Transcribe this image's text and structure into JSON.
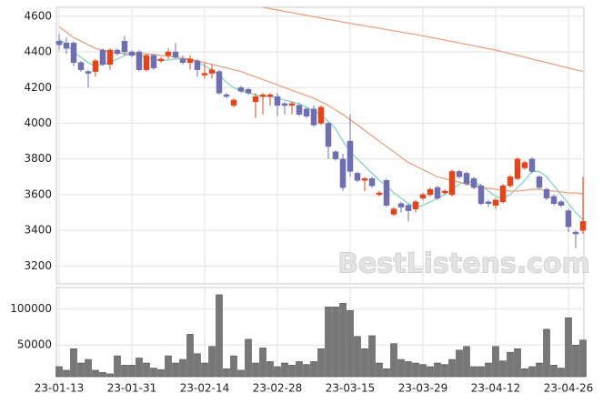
{
  "chart_data": {
    "type": "candlestick",
    "watermark": "BestListens.com",
    "categories": [
      "23-01-13",
      null,
      null,
      null,
      null,
      null,
      null,
      null,
      null,
      null,
      "23-01-31",
      null,
      null,
      null,
      null,
      null,
      null,
      null,
      null,
      null,
      "23-02-14",
      null,
      null,
      null,
      null,
      null,
      null,
      null,
      null,
      null,
      "23-02-28",
      null,
      null,
      null,
      null,
      null,
      null,
      null,
      null,
      null,
      "23-03-15",
      null,
      null,
      null,
      null,
      null,
      null,
      null,
      null,
      null,
      "23-03-29",
      null,
      null,
      null,
      null,
      null,
      null,
      null,
      null,
      null,
      "23-04-12",
      null,
      null,
      null,
      null,
      null,
      null,
      null,
      null,
      null,
      "23-04-26",
      null,
      null
    ],
    "up_color": "#e0461c",
    "down_color": "#6f6fb0",
    "open": [
      4460,
      4450,
      4450,
      4340,
      4290,
      4290,
      4410,
      4330,
      4410,
      4460,
      4400,
      4400,
      4300,
      4380,
      4350,
      4380,
      4400,
      4360,
      4340,
      4350,
      4270,
      4280,
      4290,
      4160,
      4100,
      4200,
      4190,
      4120,
      4150,
      4150,
      4150,
      4110,
      4100,
      4100,
      4080,
      4080,
      4000,
      4000,
      3840,
      3800,
      3900,
      3720,
      3680,
      3690,
      3600,
      3680,
      3490,
      3550,
      3540,
      3520,
      3580,
      3600,
      3640,
      3610,
      3600,
      3730,
      3720,
      3690,
      3650,
      3560,
      3540,
      3560,
      3650,
      3690,
      3750,
      3800,
      3700,
      3630,
      3590,
      3560,
      3510,
      3390,
      3400
    ],
    "high": [
      4500,
      4480,
      4460,
      4350,
      4300,
      4360,
      4420,
      4420,
      4420,
      4490,
      4410,
      4410,
      4390,
      4390,
      4370,
      4420,
      4450,
      4380,
      4380,
      4360,
      4340,
      4330,
      4300,
      4170,
      4140,
      4210,
      4200,
      4170,
      4170,
      4170,
      4170,
      4120,
      4120,
      4110,
      4090,
      4100,
      4100,
      4010,
      3850,
      3830,
      4050,
      3730,
      3700,
      3700,
      3620,
      3690,
      3530,
      3560,
      3550,
      3570,
      3610,
      3640,
      3650,
      3630,
      3740,
      3740,
      3730,
      3700,
      3660,
      3570,
      3580,
      3660,
      3710,
      3810,
      3790,
      3810,
      3710,
      3640,
      3600,
      3570,
      3520,
      3400,
      3700
    ],
    "low": [
      4410,
      4390,
      4320,
      4290,
      4200,
      4260,
      4320,
      4300,
      4380,
      4380,
      4370,
      4290,
      4290,
      4300,
      4340,
      4360,
      4360,
      4330,
      4300,
      4260,
      4250,
      4250,
      4160,
      4140,
      4090,
      4170,
      4160,
      4030,
      4050,
      4100,
      4040,
      4050,
      4050,
      4040,
      4030,
      3980,
      3990,
      3800,
      3790,
      3620,
      3700,
      3670,
      3620,
      3640,
      3590,
      3530,
      3480,
      3500,
      3450,
      3500,
      3570,
      3590,
      3570,
      3600,
      3590,
      3690,
      3650,
      3630,
      3540,
      3530,
      3520,
      3550,
      3640,
      3680,
      3740,
      3720,
      3630,
      3570,
      3540,
      3530,
      3390,
      3300,
      3380
    ],
    "close": [
      4440,
      4420,
      4340,
      4300,
      4280,
      4350,
      4330,
      4410,
      4390,
      4400,
      4380,
      4300,
      4380,
      4310,
      4360,
      4400,
      4370,
      4340,
      4360,
      4300,
      4280,
      4300,
      4170,
      4150,
      4130,
      4180,
      4170,
      4150,
      4160,
      4160,
      4100,
      4100,
      4110,
      4050,
      4040,
      3990,
      4090,
      3870,
      3800,
      3640,
      3730,
      3680,
      3690,
      3650,
      3610,
      3540,
      3520,
      3530,
      3510,
      3560,
      3600,
      3630,
      3580,
      3620,
      3730,
      3700,
      3660,
      3640,
      3550,
      3550,
      3570,
      3650,
      3700,
      3800,
      3780,
      3730,
      3640,
      3580,
      3550,
      3540,
      3420,
      3380,
      3450
    ],
    "lines": [
      {
        "color": "#86d3c3",
        "values": [
          4470,
          4440,
          4400,
          4370,
          4340,
          4320,
          4330,
          4340,
          4360,
          4380,
          4390,
          4380,
          4370,
          4360,
          4350,
          4355,
          4360,
          4360,
          4355,
          4345,
          4320,
          4300,
          4270,
          4230,
          4200,
          4180,
          4170,
          4160,
          4150,
          4150,
          4140,
          4130,
          4120,
          4110,
          4090,
          4070,
          4050,
          4010,
          3970,
          3900,
          3840,
          3800,
          3760,
          3720,
          3680,
          3650,
          3610,
          3580,
          3550,
          3530,
          3540,
          3560,
          3580,
          3600,
          3630,
          3660,
          3670,
          3670,
          3650,
          3620,
          3590,
          3580,
          3600,
          3640,
          3680,
          3730,
          3730,
          3700,
          3650,
          3600,
          3550,
          3500,
          3460
        ]
      },
      {
        "color": "#e8a384",
        "values": [
          4540,
          4510,
          4480,
          4460,
          4440,
          4420,
          4410,
          4400,
          4395,
          4390,
          4390,
          4390,
          4390,
          4385,
          4380,
          4375,
          4370,
          4365,
          4360,
          4350,
          4340,
          4330,
          4320,
          4310,
          4300,
          4290,
          4275,
          4260,
          4245,
          4230,
          4215,
          4200,
          4185,
          4170,
          4155,
          4140,
          4120,
          4100,
          4075,
          4050,
          4020,
          3990,
          3960,
          3930,
          3900,
          3870,
          3840,
          3810,
          3780,
          3760,
          3740,
          3720,
          3700,
          3690,
          3680,
          3670,
          3660,
          3650,
          3640,
          3635,
          3630,
          3625,
          3620,
          3620,
          3625,
          3630,
          3630,
          3625,
          3620,
          3615,
          3610,
          3610,
          3605
        ]
      },
      {
        "color": "#e8a384",
        "values": [
          null,
          null,
          null,
          null,
          null,
          null,
          null,
          null,
          null,
          null,
          null,
          null,
          null,
          null,
          null,
          null,
          null,
          null,
          null,
          null,
          null,
          null,
          null,
          null,
          null,
          null,
          null,
          null,
          4650,
          4642,
          4635,
          4627,
          4620,
          4612,
          4605,
          4597,
          4590,
          4582,
          4575,
          4567,
          4560,
          4553,
          4546,
          4539,
          4532,
          4525,
          4518,
          4511,
          4504,
          4497,
          4490,
          4482,
          4474,
          4466,
          4458,
          4450,
          4442,
          4434,
          4426,
          4418,
          4410,
          4400,
          4390,
          4380,
          4370,
          4360,
          4350,
          4340,
          4330,
          4320,
          4310,
          4300,
          4290
        ]
      }
    ],
    "ylim": [
      3100,
      4650
    ],
    "yticks": [
      3200,
      3400,
      3600,
      3800,
      4000,
      4200,
      4400,
      4600
    ],
    "grid": true,
    "volume": {
      "color": "#777777",
      "values": [
        20000,
        15000,
        45000,
        25000,
        30000,
        15000,
        12000,
        10000,
        35000,
        22000,
        22000,
        32000,
        25000,
        18000,
        16000,
        35000,
        25000,
        30000,
        65000,
        38000,
        25000,
        48000,
        120000,
        17000,
        35000,
        15000,
        58000,
        25000,
        46000,
        27000,
        20000,
        25000,
        22000,
        27000,
        23000,
        27000,
        45000,
        103000,
        103000,
        108000,
        98000,
        62000,
        45000,
        63000,
        25000,
        17000,
        52000,
        30000,
        27000,
        25000,
        23000,
        20000,
        25000,
        23000,
        30000,
        43000,
        48000,
        20000,
        20000,
        25000,
        48000,
        28000,
        40000,
        45000,
        17000,
        20000,
        25000,
        72000,
        22000,
        18000,
        88000,
        50000,
        57000
      ],
      "ylim": [
        6000,
        130000
      ],
      "yticks": [
        50000,
        100000
      ]
    }
  }
}
